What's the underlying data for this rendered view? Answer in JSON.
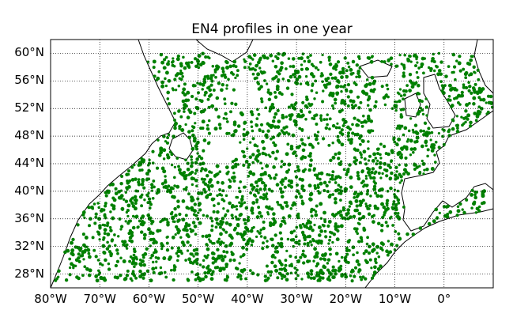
{
  "title": "EN4 profiles in one year",
  "colors": {
    "profile_dot": "#008000",
    "land": "#ffffff",
    "coast": "#000000",
    "grid": "#000000"
  },
  "map": {
    "projection": "cylindrical",
    "lon_range": [
      -80,
      10
    ],
    "lat_range": [
      26,
      62
    ],
    "lat_ticks": [
      {
        "value": 60,
        "label": "60°N"
      },
      {
        "value": 56,
        "label": "56°N"
      },
      {
        "value": 52,
        "label": "52°N"
      },
      {
        "value": 48,
        "label": "48°N"
      },
      {
        "value": 44,
        "label": "44°N"
      },
      {
        "value": 40,
        "label": "40°N"
      },
      {
        "value": 36,
        "label": "36°N"
      },
      {
        "value": 32,
        "label": "32°N"
      },
      {
        "value": 28,
        "label": "28°N"
      }
    ],
    "lon_ticks": [
      {
        "value": -80,
        "label": "80°W"
      },
      {
        "value": -70,
        "label": "70°W"
      },
      {
        "value": -60,
        "label": "60°W"
      },
      {
        "value": -50,
        "label": "50°W"
      },
      {
        "value": -40,
        "label": "40°W"
      },
      {
        "value": -30,
        "label": "30°W"
      },
      {
        "value": -20,
        "label": "20°W"
      },
      {
        "value": -10,
        "label": "10°W"
      },
      {
        "value": 0,
        "label": "0°"
      }
    ],
    "profile_bounds": {
      "lon": [
        -80,
        10
      ],
      "lat": [
        27,
        60
      ]
    },
    "empty_regions": [
      {
        "lon": -40,
        "lat": 54,
        "r": 2.5
      },
      {
        "lon": -45,
        "lat": 46,
        "r": 2.5
      },
      {
        "lon": -25,
        "lat": 45,
        "r": 2.0
      },
      {
        "lon": -12,
        "lat": 50,
        "r": 2.5
      },
      {
        "lon": -10,
        "lat": 56,
        "r": 1.6
      },
      {
        "lon": -38,
        "lat": 30,
        "r": 2.0
      },
      {
        "lon": -57,
        "lat": 38,
        "r": 1.8
      }
    ]
  }
}
